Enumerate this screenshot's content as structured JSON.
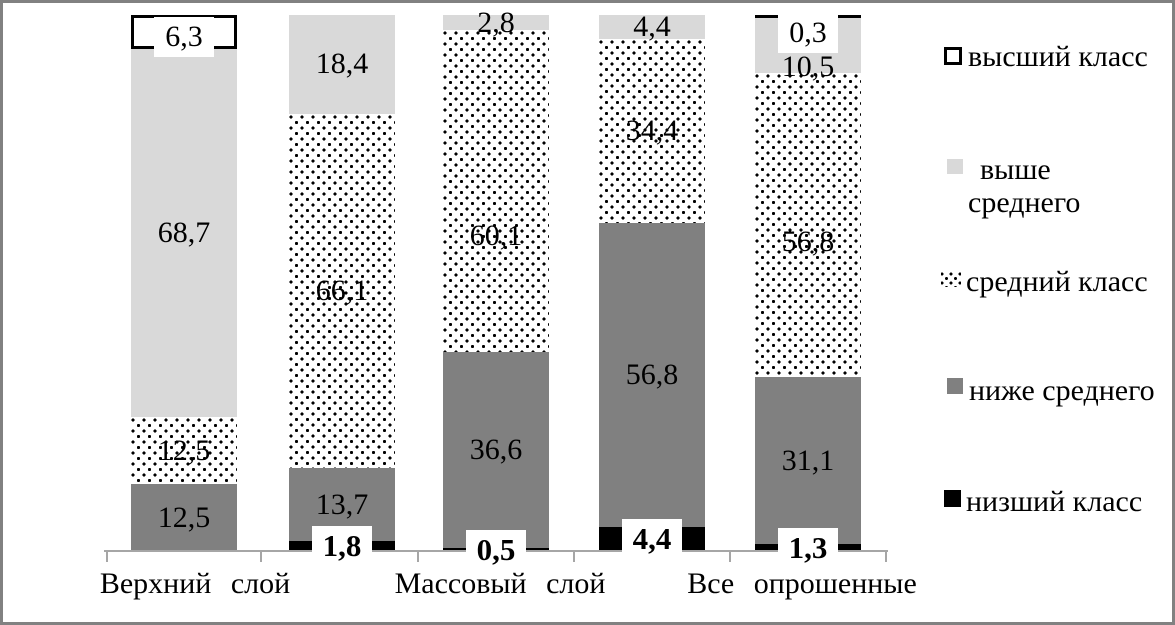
{
  "chart_data": {
    "type": "bar",
    "stacked": true,
    "orientation": "vertical",
    "value_unit": "percent",
    "decimal_separator": ",",
    "ylim": [
      0,
      100
    ],
    "grid": false,
    "legend_position": "right",
    "categories": [
      "Верхний слой",
      "",
      "Массовый слой",
      "",
      "Все опрошенные"
    ],
    "x_tick_labels": [
      "Верхний  слой",
      "Массовый  слой",
      "Все  опрошенные"
    ],
    "series": [
      {
        "name": "низший класс",
        "color": "#000000",
        "label_style": "bold-boxed",
        "values": [
          0,
          1.8,
          0.5,
          4.4,
          1.3
        ],
        "labels": [
          "",
          "1,8",
          "0,5",
          "4,4",
          "1,3"
        ]
      },
      {
        "name": "ниже среднего",
        "color": "#808080",
        "label_style": "plain",
        "values": [
          12.5,
          13.7,
          36.6,
          56.8,
          31.1
        ],
        "labels": [
          "12,5",
          "13,7",
          "36,6",
          "56,8",
          "31,1"
        ]
      },
      {
        "name": "средний класс",
        "color": "#ffffff",
        "pattern": "black-dots",
        "label_style": "plain",
        "values": [
          12.5,
          66.1,
          60.1,
          34.4,
          56.8
        ],
        "labels": [
          "12,5",
          "66,1",
          "60,1",
          "34,4",
          "56,8"
        ]
      },
      {
        "name": "выше среднего",
        "color": "#d9d9d9",
        "label_style": "plain",
        "values": [
          68.7,
          18.4,
          2.8,
          4.4,
          10.5
        ],
        "labels": [
          "68,7",
          "18,4",
          "2,8",
          "4,4",
          "10,5"
        ]
      },
      {
        "name": "высший класс",
        "color": "#ffffff",
        "border_color": "#000000",
        "label_style": "boxed",
        "values": [
          6.3,
          0,
          0,
          0,
          0.3
        ],
        "labels": [
          "6,3",
          "",
          "",
          "",
          "0,3"
        ]
      }
    ],
    "legend": {
      "items": [
        {
          "label": "высший класс",
          "lines": [
            "высший класс"
          ],
          "swatch": "white-black-border"
        },
        {
          "label": "выше среднего",
          "lines": [
            "выше",
            "среднего"
          ],
          "swatch": "light-gray"
        },
        {
          "label": "средний класс",
          "lines": [
            "средний класс"
          ],
          "swatch": "dotted"
        },
        {
          "label": "ниже среднего",
          "lines": [
            "ниже среднего"
          ],
          "swatch": "dark-gray"
        },
        {
          "label": "низший класс",
          "lines": [
            "низший класс"
          ],
          "swatch": "black"
        }
      ]
    },
    "colors": {
      "light_gray": "#d9d9d9",
      "dark_gray": "#808080",
      "black": "#000000",
      "axis_line": "#a6a6a6",
      "frame_border": "#818181"
    }
  }
}
